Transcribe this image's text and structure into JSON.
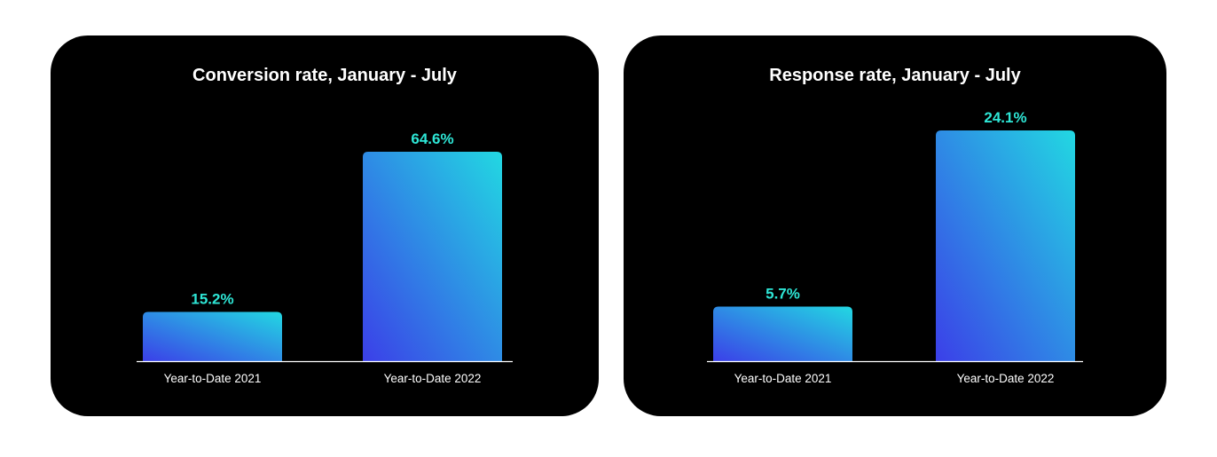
{
  "colors": {
    "card_background": "#000000",
    "page_background": "#ffffff",
    "title_text": "#ffffff",
    "value_label": "#2ee6d6",
    "bar_gradient_top": "#22d8e2",
    "bar_gradient_bottom": "#3b3fe8",
    "baseline": "#ffffff"
  },
  "chart_data": [
    {
      "type": "bar",
      "title": "Conversion rate, January - July",
      "categories": [
        "Year-to-Date 2021",
        "Year-to-Date 2022"
      ],
      "values": [
        15.2,
        64.6
      ],
      "value_labels": [
        "15.2%",
        "64.6%"
      ],
      "unit": "%",
      "ylim": [
        0,
        64.6
      ],
      "grid": false,
      "legend": "none"
    },
    {
      "type": "bar",
      "title": "Response rate, January - July",
      "categories": [
        "Year-to-Date 2021",
        "Year-to-Date 2022"
      ],
      "values": [
        5.7,
        24.1
      ],
      "value_labels": [
        "5.7%",
        "24.1%"
      ],
      "unit": "%",
      "ylim": [
        0,
        24.1
      ],
      "grid": false,
      "legend": "none"
    }
  ]
}
